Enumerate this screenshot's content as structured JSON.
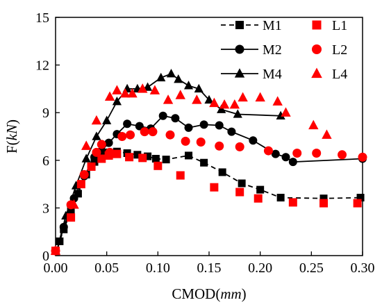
{
  "chart_data": {
    "type": "scatter",
    "xlabel": "CMOD(mm)",
    "xlabel_plain": "CMOD(",
    "xlabel_italic": "mm",
    "xlabel_close": ")",
    "ylabel_plain": "F(",
    "ylabel_italic": "kN",
    "ylabel_close": ")",
    "xlim": [
      0.0,
      0.3
    ],
    "ylim": [
      0,
      15
    ],
    "xticks": [
      0.0,
      0.05,
      0.1,
      0.15,
      0.2,
      0.25,
      0.3
    ],
    "xtick_labels": [
      "0.00",
      "0.05",
      "0.10",
      "0.15",
      "0.20",
      "0.25",
      "0.30"
    ],
    "yticks": [
      0,
      3,
      6,
      9,
      12,
      15
    ],
    "ytick_labels": [
      "0",
      "3",
      "6",
      "9",
      "12",
      "15"
    ],
    "grid": false,
    "legend_placement": "top-right",
    "series": [
      {
        "name": "M1",
        "kind": "line",
        "marker": "square",
        "color": "#000000",
        "dashed": true,
        "x": [
          0.0,
          0.004,
          0.008,
          0.015,
          0.022,
          0.03,
          0.038,
          0.045,
          0.052,
          0.06,
          0.07,
          0.08,
          0.09,
          0.098,
          0.108,
          0.13,
          0.145,
          0.163,
          0.182,
          0.2,
          0.22,
          0.262,
          0.298
        ],
        "y": [
          0.0,
          0.9,
          1.65,
          2.8,
          3.9,
          5.1,
          5.9,
          6.2,
          6.5,
          6.55,
          6.45,
          6.35,
          6.25,
          6.1,
          6.05,
          6.3,
          5.85,
          5.25,
          4.55,
          4.15,
          3.65,
          3.6,
          3.65
        ]
      },
      {
        "name": "M2",
        "kind": "line",
        "marker": "circle",
        "color": "#000000",
        "dashed": false,
        "x": [
          0.0,
          0.008,
          0.018,
          0.028,
          0.038,
          0.045,
          0.052,
          0.06,
          0.07,
          0.082,
          0.093,
          0.105,
          0.117,
          0.13,
          0.145,
          0.16,
          0.172,
          0.193,
          0.215,
          0.225,
          0.232,
          0.3
        ],
        "y": [
          0.0,
          1.8,
          3.6,
          5.0,
          6.2,
          6.6,
          7.1,
          7.65,
          8.3,
          8.15,
          8.0,
          8.8,
          8.65,
          8.05,
          8.25,
          8.2,
          7.8,
          7.25,
          6.4,
          6.2,
          5.9,
          6.1
        ]
      },
      {
        "name": "M4",
        "kind": "line",
        "marker": "triangle",
        "color": "#000000",
        "dashed": false,
        "x": [
          0.0,
          0.01,
          0.02,
          0.03,
          0.04,
          0.05,
          0.06,
          0.07,
          0.08,
          0.09,
          0.103,
          0.113,
          0.12,
          0.13,
          0.14,
          0.15,
          0.162,
          0.178,
          0.22
        ],
        "y": [
          0.0,
          2.5,
          4.4,
          6.1,
          7.5,
          8.5,
          9.7,
          10.5,
          10.5,
          10.6,
          11.2,
          11.45,
          11.1,
          10.7,
          10.5,
          9.8,
          9.2,
          8.9,
          8.8
        ]
      },
      {
        "name": "L1",
        "kind": "scatter",
        "marker": "square",
        "color": "#ff0000",
        "x": [
          0.0,
          0.015,
          0.025,
          0.035,
          0.045,
          0.052,
          0.06,
          0.072,
          0.085,
          0.1,
          0.122,
          0.155,
          0.18,
          0.198,
          0.232,
          0.262,
          0.295
        ],
        "y": [
          0.3,
          2.4,
          4.5,
          5.6,
          6.1,
          6.3,
          6.4,
          6.2,
          6.15,
          5.65,
          5.05,
          4.3,
          4.0,
          3.6,
          3.35,
          3.3,
          3.3
        ]
      },
      {
        "name": "L2",
        "kind": "scatter",
        "marker": "circle",
        "color": "#ff0000",
        "x": [
          0.0,
          0.015,
          0.028,
          0.04,
          0.045,
          0.053,
          0.065,
          0.073,
          0.087,
          0.095,
          0.112,
          0.127,
          0.142,
          0.16,
          0.18,
          0.208,
          0.236,
          0.255,
          0.28,
          0.3
        ],
        "y": [
          0.3,
          3.2,
          5.1,
          6.5,
          7.0,
          6.5,
          7.5,
          7.6,
          7.8,
          7.8,
          7.6,
          7.2,
          7.15,
          6.9,
          6.85,
          6.6,
          6.45,
          6.45,
          6.35,
          6.2
        ]
      },
      {
        "name": "L4",
        "kind": "scatter",
        "marker": "triangle",
        "color": "#ff0000",
        "x": [
          0.0,
          0.018,
          0.03,
          0.04,
          0.053,
          0.06,
          0.068,
          0.075,
          0.085,
          0.097,
          0.11,
          0.122,
          0.138,
          0.155,
          0.165,
          0.175,
          0.183,
          0.2,
          0.217,
          0.225,
          0.252,
          0.265
        ],
        "y": [
          0.3,
          3.2,
          6.9,
          8.5,
          10.0,
          10.4,
          10.2,
          10.2,
          10.5,
          10.4,
          9.8,
          10.1,
          9.8,
          9.6,
          9.5,
          9.5,
          9.95,
          9.95,
          9.7,
          9.0,
          8.2,
          7.6
        ]
      }
    ]
  }
}
